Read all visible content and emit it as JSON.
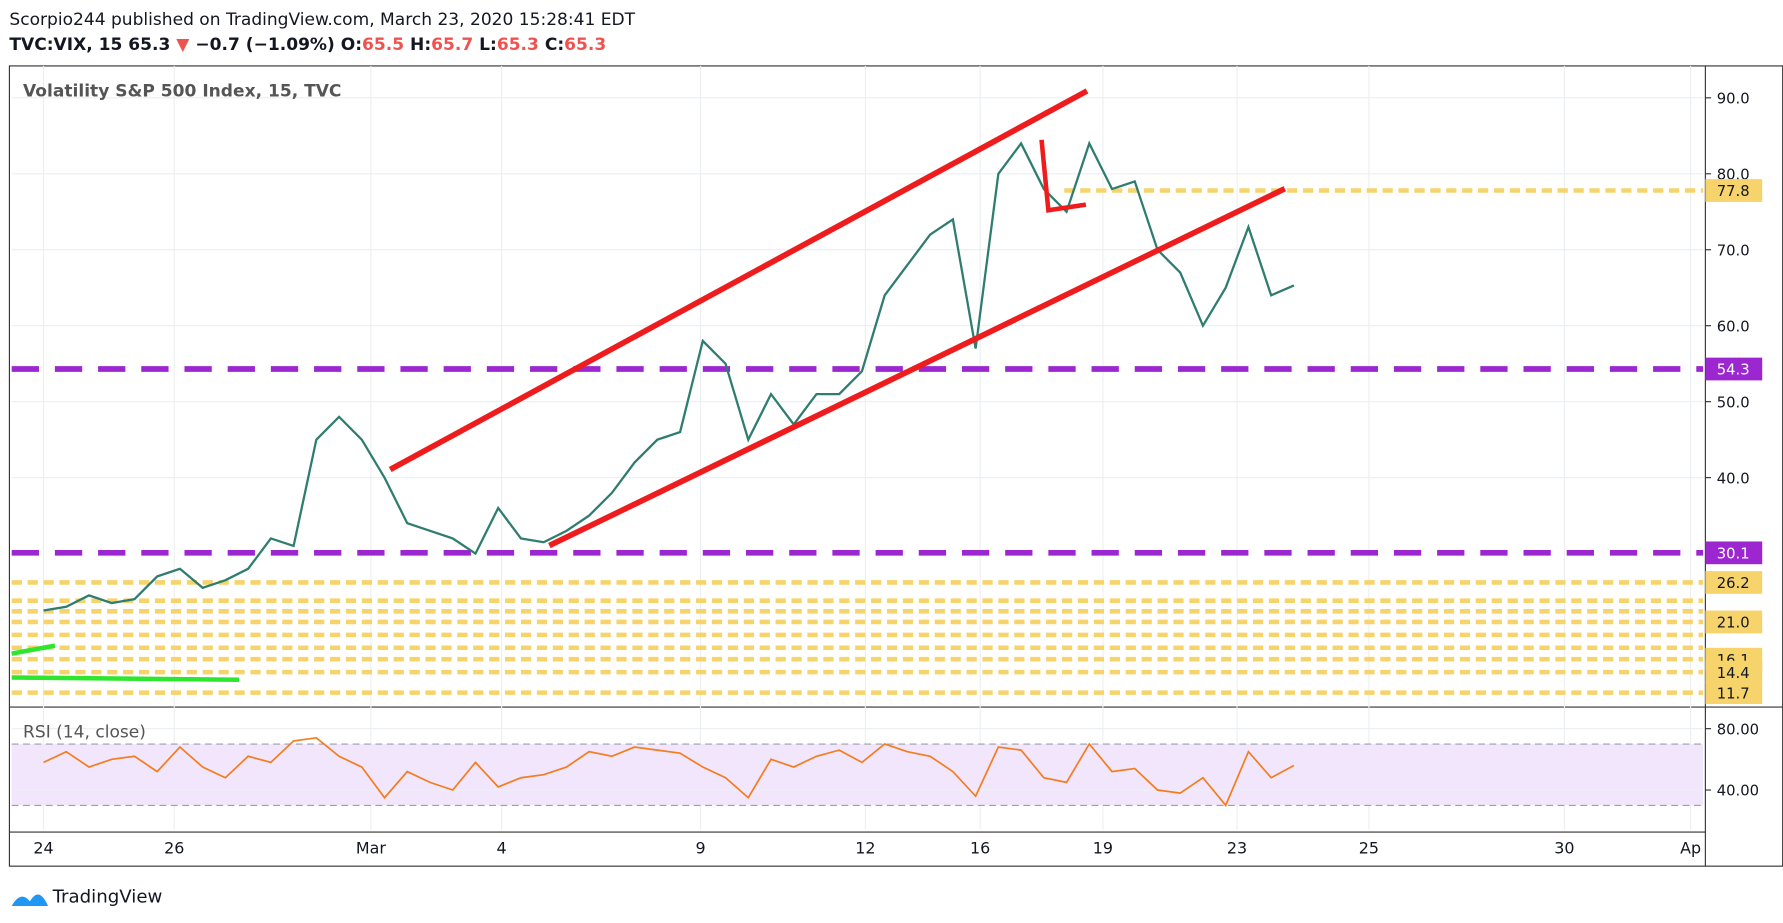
{
  "header": {
    "line1": "Scorpio244 published on TradingView.com, March 23, 2020 15:28:41 EDT",
    "symbol": "TVC:VIX, 15",
    "last": "65.3",
    "arrow": "▼",
    "change": "−0.7 (−1.09%)",
    "o_label": "O:",
    "o": "65.5",
    "h_label": "H:",
    "h": "65.7",
    "l_label": "L:",
    "l": "65.3",
    "c_label": "C:",
    "c": "65.3"
  },
  "footer": {
    "brand": "TradingView"
  },
  "chart_data": [
    {
      "type": "line",
      "title": "Volatility S&P 500 Index, 15, TVC",
      "color": "#2e7d6f",
      "x": [
        0,
        1,
        2,
        3,
        4,
        5,
        6,
        7,
        8,
        9,
        10,
        11,
        12,
        13,
        14,
        15,
        16,
        17,
        18,
        19,
        20,
        21,
        22,
        23,
        24,
        25,
        26,
        27,
        28,
        29,
        30,
        31,
        32,
        33,
        34,
        35,
        36,
        37,
        38,
        39,
        40,
        41,
        42,
        43,
        44,
        45,
        46,
        47,
        48,
        49,
        50,
        51,
        52,
        53,
        54,
        55
      ],
      "values": [
        22.5,
        23,
        24.5,
        23.5,
        24,
        27,
        28,
        25.5,
        26.5,
        28,
        32,
        31,
        45,
        48,
        45,
        40,
        34,
        33,
        32,
        30,
        36,
        32,
        31.5,
        33,
        35,
        38,
        42,
        45,
        46,
        58,
        55,
        45,
        51,
        47,
        51,
        51,
        54,
        64,
        68,
        72,
        74,
        57,
        80,
        84,
        78,
        75,
        84,
        78,
        79,
        70,
        67,
        60,
        65,
        73,
        64,
        65.3
      ],
      "xlim": [
        -1.4,
        73
      ],
      "xticks": [
        {
          "value": 0,
          "label": "24"
        },
        {
          "value": 5.75,
          "label": "26"
        },
        {
          "value": 14.4,
          "label": "Mar"
        },
        {
          "value": 20.15,
          "label": "4"
        },
        {
          "value": 28.9,
          "label": "9"
        },
        {
          "value": 36.15,
          "label": "12"
        },
        {
          "value": 41.2,
          "label": "16"
        },
        {
          "value": 46.6,
          "label": "19"
        },
        {
          "value": 52.5,
          "label": "23"
        },
        {
          "value": 58.3,
          "label": "25"
        },
        {
          "value": 66.9,
          "label": "30"
        },
        {
          "value": 72.45,
          "label": "Ap"
        }
      ],
      "ylim": [
        10.1,
        94.2
      ],
      "yticks": [
        {
          "value": 40,
          "label": "40.0"
        },
        {
          "value": 50,
          "label": "50.0"
        },
        {
          "value": 60,
          "label": "60.0"
        },
        {
          "value": 70,
          "label": "70.0"
        },
        {
          "value": 80,
          "label": "80.0"
        },
        {
          "value": 90,
          "label": "90.0"
        }
      ],
      "grid": true,
      "levels": [
        {
          "value": 77.8,
          "color": "#f7d36b",
          "style": "dotted",
          "x_start": 44.9
        },
        {
          "value": 54.3,
          "color": "#9c27d0",
          "style": "dashed"
        },
        {
          "value": 30.1,
          "color": "#9c27d0",
          "style": "dashed"
        },
        {
          "value": 26.2,
          "color": "#f7d36b",
          "style": "dotted"
        },
        {
          "value": 23.8,
          "color": "#f7d36b",
          "style": "dotted"
        },
        {
          "value": 22.4,
          "color": "#f7d36b",
          "style": "dotted"
        },
        {
          "value": 21,
          "label": "21.0",
          "color": "#f7d36b",
          "style": "dotted"
        },
        {
          "value": 19.3,
          "color": "#f7d36b",
          "style": "dotted"
        },
        {
          "value": 17.6,
          "color": "#f7d36b",
          "style": "dotted"
        },
        {
          "value": 16.1,
          "color": "#f7d36b",
          "style": "dotted"
        },
        {
          "value": 14.4,
          "color": "#f7d36b",
          "style": "dotted"
        },
        {
          "value": 11.7,
          "color": "#f7d36b",
          "style": "dotted"
        }
      ],
      "level_labels": [
        0,
        1,
        2,
        3,
        6,
        9,
        10,
        11
      ]
    },
    {
      "type": "line",
      "title": "RSI (14, close)",
      "color": "#f57c1f",
      "x": [
        0,
        1,
        2,
        3,
        4,
        5,
        6,
        7,
        8,
        9,
        10,
        11,
        12,
        13,
        14,
        15,
        16,
        17,
        18,
        19,
        20,
        21,
        22,
        23,
        24,
        25,
        26,
        27,
        28,
        29,
        30,
        31,
        32,
        33,
        34,
        35,
        36,
        37,
        38,
        39,
        40,
        41,
        42,
        43,
        44,
        45,
        46,
        47,
        48,
        49,
        50,
        51,
        52,
        53,
        54,
        55
      ],
      "values": [
        58,
        65,
        55,
        60,
        62,
        52,
        68,
        55,
        48,
        62,
        58,
        72,
        74,
        62,
        55,
        35,
        52,
        45,
        40,
        58,
        42,
        48,
        50,
        55,
        65,
        62,
        68,
        66,
        64,
        55,
        48,
        35,
        60,
        55,
        62,
        66,
        58,
        70,
        65,
        62,
        52,
        36,
        68,
        66,
        48,
        45,
        70,
        52,
        54,
        40,
        38,
        48,
        30,
        65,
        48,
        56
      ],
      "xlim": [
        -1.4,
        73
      ],
      "ylim": [
        14.1,
        94.1
      ],
      "yticks": [
        {
          "value": 40,
          "label": "40.00"
        },
        {
          "value": 80,
          "label": "80.00"
        }
      ],
      "band": [
        30,
        70
      ],
      "band_color": "#f1e6fb"
    }
  ]
}
